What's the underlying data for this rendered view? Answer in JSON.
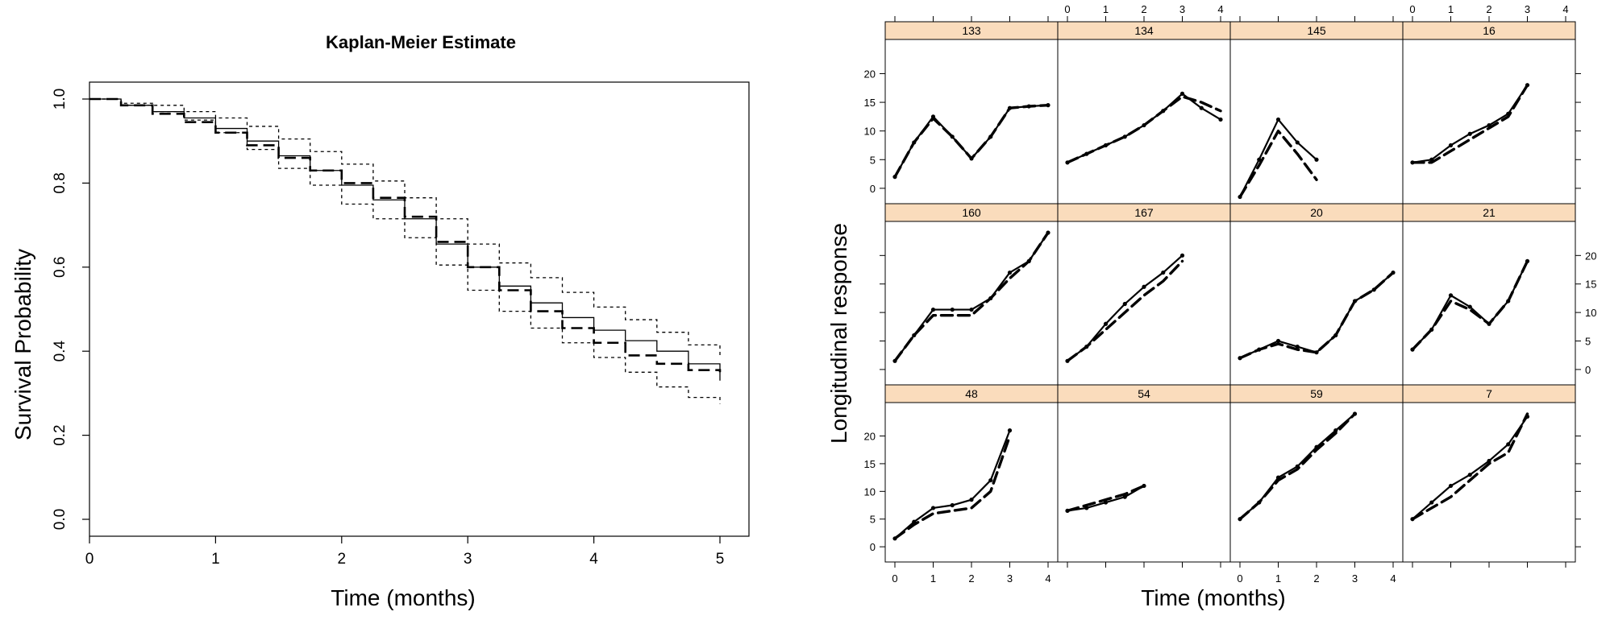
{
  "left_chart": {
    "title": "Kaplan-Meier Estimate",
    "xlabel": "Time (months)",
    "ylabel": "Survival Probability",
    "x_ticks": [
      "0",
      "1",
      "2",
      "3",
      "4",
      "5"
    ],
    "y_ticks": [
      "0.0",
      "0.2",
      "0.4",
      "0.6",
      "0.8",
      "1.0"
    ]
  },
  "right_chart": {
    "xlabel": "Time (months)",
    "ylabel": "Longitudinal response",
    "x_ticks": [
      "0",
      "1",
      "2",
      "3",
      "4"
    ],
    "y_ticks": [
      "0",
      "5",
      "10",
      "15",
      "20"
    ],
    "panel_labels": [
      "133",
      "134",
      "145",
      "16",
      "160",
      "167",
      "20",
      "21",
      "48",
      "54",
      "59",
      "7"
    ]
  },
  "colors": {
    "strip": "#fadcbc",
    "line": "#000000"
  },
  "chart_data": [
    {
      "type": "line",
      "title": "Kaplan-Meier Estimate",
      "xlabel": "Time (months)",
      "ylabel": "Survival Probability",
      "xlim": [
        0,
        5
      ],
      "ylim": [
        0,
        1
      ],
      "grid": false,
      "x": [
        0,
        0.25,
        0.5,
        0.75,
        1.0,
        1.25,
        1.5,
        1.75,
        2.0,
        2.25,
        2.5,
        2.75,
        3.0,
        3.25,
        3.5,
        3.75,
        4.0,
        4.25,
        4.5,
        4.75,
        5.0
      ],
      "series": [
        {
          "style": "solid",
          "values": [
            1.0,
            0.985,
            0.97,
            0.955,
            0.93,
            0.9,
            0.865,
            0.83,
            0.795,
            0.76,
            0.715,
            0.655,
            0.6,
            0.555,
            0.515,
            0.48,
            0.45,
            0.425,
            0.4,
            0.37,
            0.33
          ]
        },
        {
          "style": "dashed",
          "values": [
            1.0,
            0.985,
            0.965,
            0.945,
            0.92,
            0.89,
            0.86,
            0.83,
            0.8,
            0.765,
            0.72,
            0.66,
            0.6,
            0.545,
            0.495,
            0.455,
            0.42,
            0.39,
            0.37,
            0.355,
            0.35
          ]
        },
        {
          "style": "dotted",
          "values": [
            1.0,
            0.99,
            0.985,
            0.97,
            0.955,
            0.935,
            0.905,
            0.875,
            0.845,
            0.805,
            0.765,
            0.715,
            0.655,
            0.61,
            0.575,
            0.54,
            0.505,
            0.475,
            0.445,
            0.415,
            0.385
          ]
        },
        {
          "style": "dotted",
          "values": [
            1.0,
            0.985,
            0.97,
            0.95,
            0.92,
            0.88,
            0.835,
            0.795,
            0.75,
            0.715,
            0.67,
            0.605,
            0.545,
            0.495,
            0.455,
            0.42,
            0.385,
            0.35,
            0.315,
            0.29,
            0.275
          ]
        }
      ]
    },
    {
      "type": "line",
      "layout": "4x3 panels",
      "xlabel": "Time (months)",
      "ylabel": "Longitudinal response",
      "xlim": [
        0,
        4
      ],
      "ylim": [
        -1,
        24
      ],
      "grid": false,
      "panels": [
        {
          "label": "133",
          "x": [
            0,
            0.5,
            1,
            1.5,
            2,
            2.5,
            3,
            3.5,
            4
          ],
          "observed": [
            2,
            8,
            12.5,
            9,
            5.2,
            9,
            14,
            14.3,
            14.5
          ],
          "fitted": [
            2,
            8,
            12.2,
            9,
            5.2,
            9,
            14,
            14.3,
            14.5
          ]
        },
        {
          "label": "134",
          "x": [
            0,
            0.5,
            1,
            1.5,
            2,
            2.5,
            3,
            3.5,
            4
          ],
          "observed": [
            4.5,
            6,
            7.5,
            9,
            11,
            13.5,
            16.5,
            14,
            12
          ],
          "fitted": [
            4.5,
            6,
            7.5,
            9,
            11,
            13.5,
            16,
            15,
            13.5
          ]
        },
        {
          "label": "145",
          "x": [
            0,
            0.5,
            1,
            1.5,
            2
          ],
          "observed": [
            -1.5,
            5,
            12,
            8,
            5
          ],
          "fitted": [
            -1.5,
            4,
            10,
            6,
            1.5
          ]
        },
        {
          "label": "16",
          "x": [
            0,
            0.5,
            1,
            1.5,
            2,
            2.5,
            3
          ],
          "observed": [
            4.5,
            5,
            7.5,
            9.5,
            11,
            13,
            18
          ],
          "fitted": [
            4.5,
            4.5,
            6.5,
            8.5,
            10.5,
            12.5,
            18
          ]
        },
        {
          "label": "160",
          "x": [
            0,
            0.5,
            1,
            1.5,
            2,
            2.5,
            3,
            3.5,
            4
          ],
          "observed": [
            1.5,
            6,
            10.5,
            10.5,
            10.5,
            12.5,
            17,
            19,
            24
          ],
          "fitted": [
            1.5,
            6,
            9.5,
            9.5,
            9.5,
            12.5,
            16,
            19,
            24
          ]
        },
        {
          "label": "167",
          "x": [
            0,
            0.5,
            1,
            1.5,
            2,
            2.5,
            3
          ],
          "observed": [
            1.5,
            4,
            8,
            11.5,
            14.5,
            17,
            20
          ],
          "fitted": [
            1.5,
            4,
            7,
            10,
            13,
            15.5,
            19
          ]
        },
        {
          "label": "20",
          "x": [
            0,
            0.5,
            1,
            1.5,
            2,
            2.5,
            3,
            3.5,
            4
          ],
          "observed": [
            2,
            3.5,
            5,
            4,
            3,
            6,
            12,
            14,
            17
          ],
          "fitted": [
            2,
            3.5,
            4.5,
            3.5,
            3,
            6,
            12,
            14,
            17
          ]
        },
        {
          "label": "21",
          "x": [
            0,
            0.5,
            1,
            1.5,
            2,
            2.5,
            3
          ],
          "observed": [
            3.5,
            7,
            13,
            11,
            8,
            12,
            19
          ],
          "fitted": [
            3.5,
            7,
            12,
            10.5,
            8,
            12,
            19
          ]
        },
        {
          "label": "48",
          "x": [
            0,
            0.5,
            1,
            1.5,
            2,
            2.5,
            3
          ],
          "observed": [
            1.5,
            4.5,
            7,
            7.5,
            8.5,
            12,
            21
          ],
          "fitted": [
            1.5,
            4,
            6,
            6.5,
            7,
            10,
            20
          ]
        },
        {
          "label": "54",
          "x": [
            0,
            0.5,
            1,
            1.5,
            2
          ],
          "observed": [
            6.5,
            7,
            8,
            9,
            11
          ],
          "fitted": [
            6.5,
            7.5,
            8.5,
            9.5,
            11
          ]
        },
        {
          "label": "59",
          "x": [
            0,
            0.5,
            1,
            1.5,
            2,
            2.5,
            3
          ],
          "observed": [
            5,
            8,
            12.5,
            14.5,
            18,
            21,
            24
          ],
          "fitted": [
            5,
            8,
            12,
            14,
            17.5,
            20.5,
            24
          ]
        },
        {
          "label": "7",
          "x": [
            0,
            0.5,
            1,
            1.5,
            2,
            2.5,
            3
          ],
          "observed": [
            5,
            8,
            11,
            13,
            15.5,
            18.5,
            23.5
          ],
          "fitted": [
            5,
            7,
            9,
            12,
            15,
            17,
            24
          ]
        }
      ]
    }
  ]
}
